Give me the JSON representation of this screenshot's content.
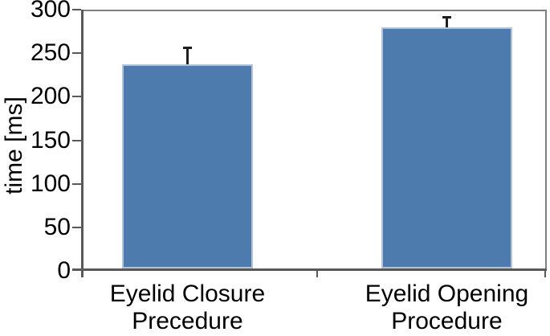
{
  "chart_data": {
    "type": "bar",
    "title": "",
    "xlabel": "",
    "ylabel": "time [ms]",
    "ylim": [
      0,
      300
    ],
    "yticks": [
      0,
      50,
      100,
      150,
      200,
      250,
      300
    ],
    "grid": false,
    "legend": false,
    "categories": [
      {
        "label": "Eyelid Closure Precedure",
        "lines": [
          "Eyelid Closure",
          "Precedure"
        ]
      },
      {
        "label": "Eyelid Opening Procedure",
        "lines": [
          "Eyelid Opening",
          "Procedure"
        ]
      }
    ],
    "series": [
      {
        "name": "time",
        "values": [
          237,
          280
        ],
        "errors_plus": [
          20,
          12
        ]
      }
    ],
    "colors": {
      "bar_fill": "#4d7bae",
      "bar_edge": "#b3c4da",
      "axis": "#595959",
      "frame": "#7f7f7f",
      "error_bar": "#1f1f1f",
      "text": "#000000",
      "background": "#ffffff"
    }
  }
}
